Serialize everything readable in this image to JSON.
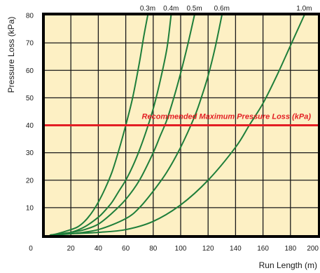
{
  "chart_data": {
    "type": "line",
    "xlabel": "Run Length (m)",
    "ylabel": "Pressure Loss (kPa)",
    "xlim": [
      0,
      200
    ],
    "ylim": [
      0,
      80
    ],
    "x_ticks": [
      "0",
      "20",
      "40",
      "60",
      "80",
      "100",
      "120",
      "140",
      "160",
      "180",
      "200"
    ],
    "y_ticks": [
      "10",
      "20",
      "30",
      "40",
      "50",
      "60",
      "70",
      "80"
    ],
    "grid": true,
    "series": [
      {
        "name": "0.3m",
        "x": [
          5,
          10,
          20,
          25,
          30,
          35,
          40,
          45,
          50,
          55,
          60,
          65,
          70,
          73,
          76
        ],
        "y": [
          0,
          0.5,
          2,
          3,
          5,
          8,
          12,
          17,
          23,
          31,
          40,
          50,
          63,
          72,
          80
        ]
      },
      {
        "name": "0.4m",
        "x": [
          5,
          10,
          20,
          30,
          40,
          45,
          50,
          55,
          60,
          65,
          70,
          75,
          80,
          85,
          90,
          93
        ],
        "y": [
          0,
          0.3,
          1,
          3,
          6.5,
          9,
          12,
          16,
          20,
          25,
          31,
          38,
          46,
          56,
          68,
          80
        ]
      },
      {
        "name": "0.5m",
        "x": [
          5,
          20,
          30,
          40,
          50,
          60,
          70,
          80,
          85,
          90,
          95,
          100,
          105,
          110
        ],
        "y": [
          0,
          1,
          2,
          4,
          8,
          13,
          20,
          30,
          36,
          42,
          50,
          59,
          69,
          80
        ]
      },
      {
        "name": "0.6m",
        "x": [
          5,
          20,
          40,
          60,
          70,
          80,
          90,
          100,
          110,
          115,
          120,
          125,
          130
        ],
        "y": [
          0,
          0.5,
          2,
          6,
          10,
          16,
          23,
          32,
          43,
          50,
          58,
          68,
          80
        ]
      },
      {
        "name": "1.0m",
        "x": [
          5,
          20,
          40,
          60,
          80,
          100,
          120,
          140,
          150,
          160,
          170,
          180,
          190
        ],
        "y": [
          0,
          0.5,
          1,
          2,
          5,
          11,
          20,
          32,
          40,
          48,
          58,
          69,
          80
        ]
      }
    ],
    "reference_line": {
      "y": 40,
      "label": "Recommended Maximum Pressure Loss  (kPa)",
      "color": "#e31e24"
    },
    "colors": {
      "plot_background": "#fdf0c4",
      "grid": "#1a1a1a",
      "frame": "#000000",
      "curve": "#1e7e3a",
      "reference": "#e31e24"
    }
  }
}
